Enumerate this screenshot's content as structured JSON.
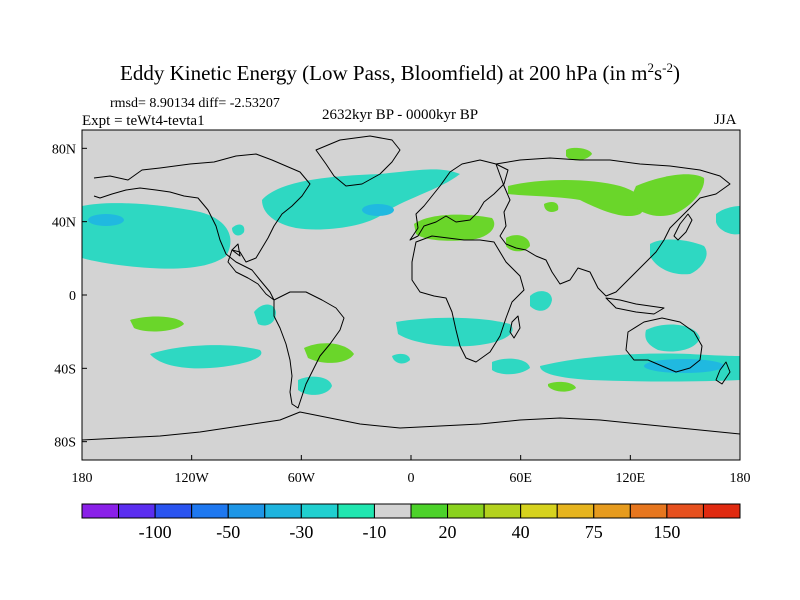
{
  "title": {
    "main": "Eddy Kinetic Energy (Low Pass, Bloomfield) at 200 hPa (in m",
    "sup1": "2",
    "mid": "s",
    "sup2": "-2",
    "end": ")"
  },
  "subtitle": {
    "stats": "rmsd= 8.90134 diff= -2.53207",
    "experiment": "Expt = teWt4-tevta1",
    "period": "2632kyr BP - 0000kyr BP",
    "season": "JJA"
  },
  "map": {
    "projection": "cylindrical-equidistant",
    "lon_range": [
      -180,
      180
    ],
    "lat_range": [
      -90,
      90
    ],
    "x_ticks": [
      "180",
      "120W",
      "60W",
      "0",
      "60E",
      "120E",
      "180"
    ],
    "y_ticks": [
      "80N",
      "40N",
      "0",
      "40S",
      "80S"
    ],
    "background_color": "#d3d3d3",
    "coast_color": "#000000"
  },
  "colorbar": {
    "colors": [
      "#8a20e8",
      "#5b2ef0",
      "#2a54f0",
      "#1e78f0",
      "#1e96e6",
      "#1eb4de",
      "#20cfcf",
      "#20e6b0",
      "#d3d3d3",
      "#4cd22a",
      "#8ad21e",
      "#b4d21e",
      "#d6d21e",
      "#e6b41e",
      "#e69b1e",
      "#e6761e",
      "#e6501e",
      "#e02a10"
    ],
    "labels": [
      "-100",
      "-50",
      "-30",
      "-10",
      "20",
      "40",
      "75",
      "150"
    ]
  },
  "anomalies": {
    "negative_color": "#2ed8c2",
    "negative_strong_color": "#20b9e0",
    "positive_color": "#6ad62a"
  }
}
